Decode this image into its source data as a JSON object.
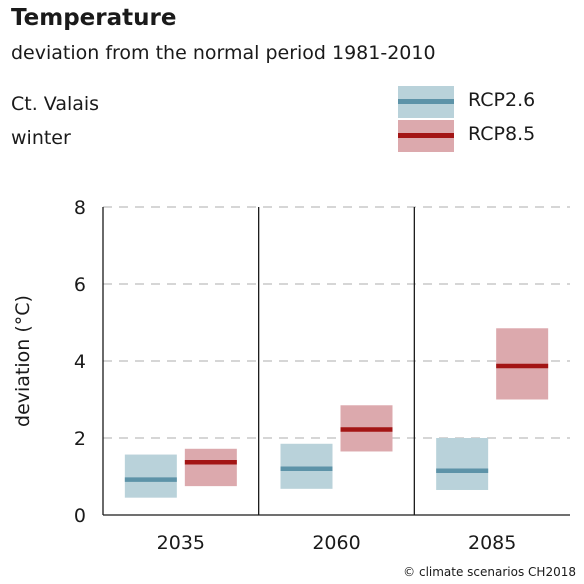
{
  "chart_data": {
    "type": "box",
    "title": "Temperature",
    "subtitle": "deviation from the normal period 1981-2010",
    "region": "Ct. Valais",
    "season": "winter",
    "ylabel": "deviation (°C)",
    "xlabel": "",
    "ylim": [
      0,
      8
    ],
    "yticks": [
      0,
      2,
      4,
      6,
      8
    ],
    "grid": "horizontal dashed",
    "legend_position": "top-right",
    "categories": [
      "2035",
      "2060",
      "2085"
    ],
    "series": [
      {
        "name": "RCP2.6",
        "fill_color": "#b9d2da",
        "line_color": "#5d93a8",
        "median": [
          0.92,
          1.2,
          1.15
        ],
        "low": [
          0.45,
          0.68,
          0.65
        ],
        "high": [
          1.57,
          1.85,
          2.0
        ]
      },
      {
        "name": "RCP8.5",
        "fill_color": "#dca9ad",
        "line_color": "#a31515",
        "median": [
          1.37,
          2.22,
          3.87
        ],
        "low": [
          0.75,
          1.65,
          3.0
        ],
        "high": [
          1.72,
          2.85,
          4.85
        ]
      }
    ],
    "credit": "© climate scenarios CH2018"
  }
}
